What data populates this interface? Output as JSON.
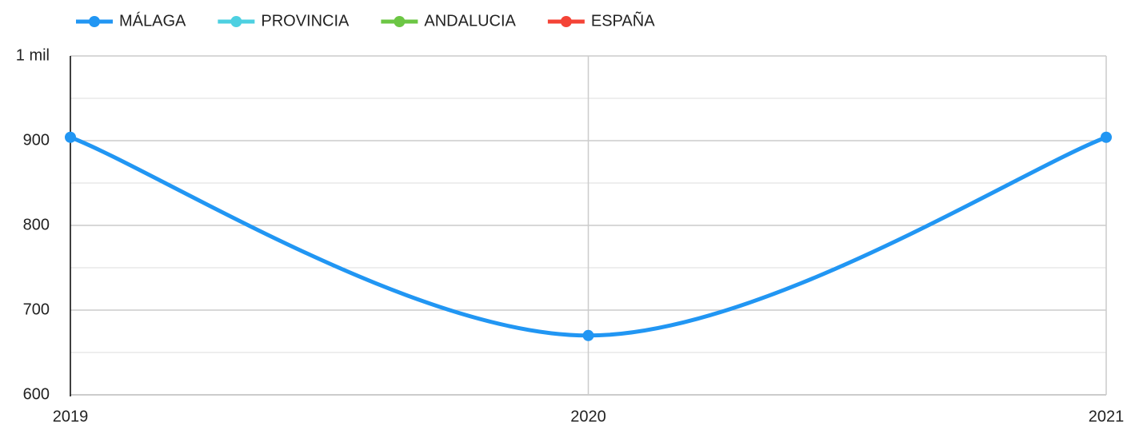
{
  "chart_data": {
    "type": "line",
    "categories": [
      "2019",
      "2020",
      "2021"
    ],
    "series": [
      {
        "name": "MÁLAGA",
        "color": "#2196f3",
        "values": [
          904,
          670,
          904
        ]
      },
      {
        "name": "PROVINCIA",
        "color": "#4dd0e1",
        "values": [
          null,
          null,
          null
        ]
      },
      {
        "name": "ANDALUCIA",
        "color": "#6cc644",
        "values": [
          null,
          null,
          null
        ]
      },
      {
        "name": "ESPAÑA",
        "color": "#f44336",
        "values": [
          null,
          null,
          null
        ]
      }
    ],
    "ylim": [
      600,
      1000
    ],
    "yticks": [
      600,
      700,
      800,
      900,
      {
        "value": 1000,
        "label": "1 mil"
      }
    ],
    "minor_yticks": [
      650,
      750,
      850,
      950
    ],
    "grid": true,
    "smooth": true,
    "legend": "top"
  }
}
